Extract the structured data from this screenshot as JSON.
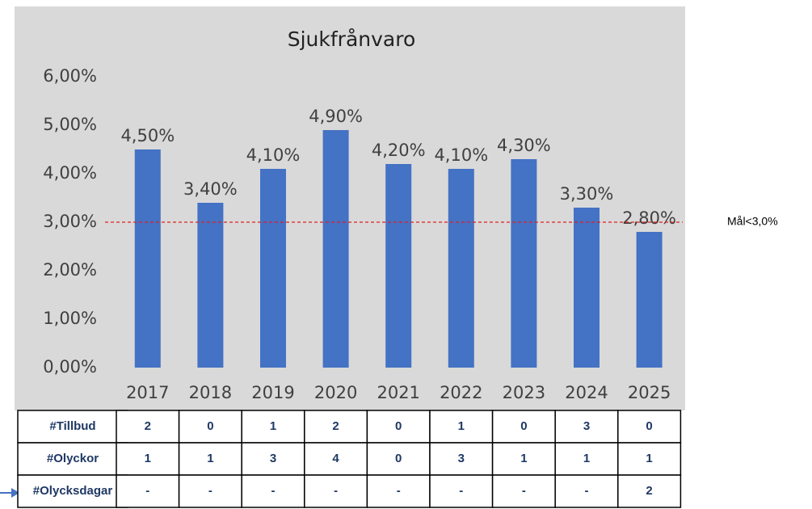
{
  "chart_data": {
    "type": "bar",
    "title": "Sjukfrånvaro",
    "categories": [
      "2017",
      "2018",
      "2019",
      "2020",
      "2021",
      "2022",
      "2023",
      "2024",
      "2025"
    ],
    "values": [
      4.5,
      3.4,
      4.1,
      4.9,
      4.2,
      4.1,
      4.3,
      3.3,
      2.8
    ],
    "value_labels": [
      "4,50%",
      "3,40%",
      "4,10%",
      "4,90%",
      "4,20%",
      "4,10%",
      "4,30%",
      "3,30%",
      "2,80%"
    ],
    "color": "#4472c4",
    "ylim": [
      0,
      6
    ],
    "yticks": [
      {
        "value": 0,
        "label": "0,00%"
      },
      {
        "value": 1,
        "label": "1,00%"
      },
      {
        "value": 2,
        "label": "2,00%"
      },
      {
        "value": 3,
        "label": "3,00%"
      },
      {
        "value": 4,
        "label": "4,00%"
      },
      {
        "value": 5,
        "label": "5,00%"
      },
      {
        "value": 6,
        "label": "6,00%"
      }
    ],
    "target": {
      "value": 3,
      "label": "Mål<3,0%",
      "color": "#e02020"
    }
  },
  "table": {
    "rows": [
      {
        "header": "#Tillbud",
        "values": [
          2,
          0,
          1,
          2,
          0,
          1,
          0,
          3,
          0
        ]
      },
      {
        "header": "#Olyckor",
        "values": [
          1,
          1,
          3,
          4,
          0,
          3,
          1,
          1,
          1
        ]
      },
      {
        "header": "#Olycksdagar",
        "values": [
          "-",
          "-",
          "-",
          "-",
          "-",
          "-",
          "-",
          "-",
          2
        ]
      }
    ]
  }
}
